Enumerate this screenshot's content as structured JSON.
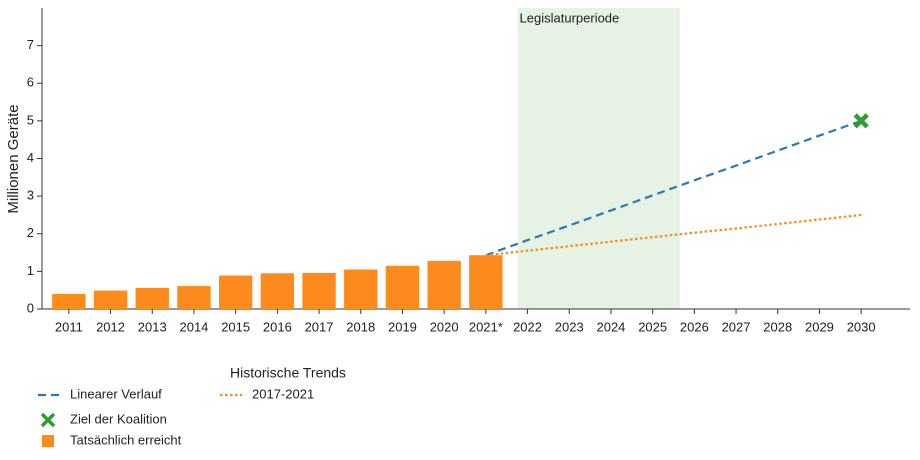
{
  "chart_data": {
    "type": "bar",
    "y_label": "Millionen Geräte",
    "categories": [
      "2011",
      "2012",
      "2013",
      "2014",
      "2015",
      "2016",
      "2017",
      "2018",
      "2019",
      "2020",
      "2021*",
      "2022",
      "2023",
      "2024",
      "2025",
      "2026",
      "2027",
      "2028",
      "2029",
      "2030"
    ],
    "ylim": [
      0,
      8
    ],
    "yticks": [
      0,
      1,
      2,
      3,
      4,
      5,
      6,
      7
    ],
    "band": {
      "label": "Legislaturperiode",
      "from": "2022",
      "to": "2025",
      "color": "#e6f2e3"
    },
    "legend_group_title": "Historische Trends",
    "series": [
      {
        "name": "Tatsächlich erreicht",
        "kind": "bar",
        "color": "#fd8a1c",
        "values": [
          0.4,
          0.49,
          0.56,
          0.61,
          0.89,
          0.95,
          0.96,
          1.05,
          1.15,
          1.28,
          1.43,
          null,
          null,
          null,
          null,
          null,
          null,
          null,
          null,
          null
        ]
      },
      {
        "name": "Linearer Verlauf",
        "kind": "dashed",
        "color": "#2a7ab8",
        "values": [
          null,
          null,
          null,
          null,
          null,
          null,
          null,
          null,
          null,
          null,
          1.43,
          1.83,
          2.22,
          2.62,
          3.02,
          3.42,
          3.81,
          4.21,
          4.61,
          5.0
        ]
      },
      {
        "name": "2017-2021",
        "kind": "dotted",
        "color": "#fd8a1c",
        "values": [
          null,
          null,
          null,
          null,
          null,
          null,
          null,
          null,
          null,
          null,
          1.43,
          1.55,
          1.67,
          1.79,
          1.91,
          2.03,
          2.14,
          2.26,
          2.38,
          2.5
        ]
      },
      {
        "name": "Ziel der Koalition",
        "kind": "marker",
        "color": "#2ca02c",
        "values": [
          null,
          null,
          null,
          null,
          null,
          null,
          null,
          null,
          null,
          null,
          null,
          null,
          null,
          null,
          null,
          null,
          null,
          null,
          null,
          5.0
        ]
      }
    ]
  }
}
